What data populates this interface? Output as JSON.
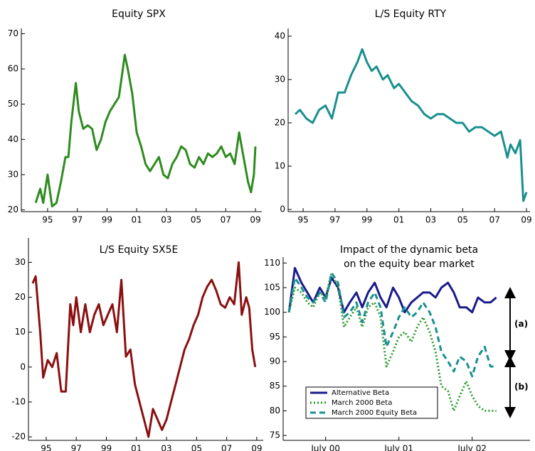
{
  "chart_data": [
    {
      "type": "line",
      "title": "Equity SPX",
      "color": "#2e8b1f",
      "x": [
        1994.2,
        1994.5,
        1994.7,
        1995.0,
        1995.3,
        1995.6,
        1995.9,
        1996.2,
        1996.4,
        1996.6,
        1996.9,
        1997.1,
        1997.4,
        1997.7,
        1998.0,
        1998.3,
        1998.6,
        1998.9,
        1999.2,
        1999.5,
        1999.8,
        2000.0,
        2000.2,
        2000.4,
        2000.7,
        2001.0,
        2001.3,
        2001.6,
        2001.9,
        2002.2,
        2002.5,
        2002.8,
        2003.1,
        2003.4,
        2003.7,
        2004.0,
        2004.3,
        2004.6,
        2004.9,
        2005.2,
        2005.5,
        2005.8,
        2006.1,
        2006.4,
        2006.7,
        2007.0,
        2007.3,
        2007.6,
        2007.9,
        2008.2,
        2008.5,
        2008.7,
        2008.9,
        2009.0
      ],
      "values": [
        22,
        26,
        22,
        30,
        21,
        22,
        28,
        35,
        35,
        45,
        56,
        48,
        43,
        44,
        43,
        37,
        40,
        45,
        48,
        50,
        52,
        58,
        64,
        60,
        53,
        42,
        38,
        33,
        31,
        33,
        35,
        30,
        29,
        33,
        35,
        38,
        37,
        33,
        32,
        35,
        33,
        36,
        35,
        36,
        38,
        35,
        36,
        33,
        42,
        35,
        28,
        25,
        30,
        38
      ],
      "xlim": [
        1993.23,
        2009.43
      ],
      "xticks": [
        {
          "value": 1995,
          "label": "95"
        },
        {
          "value": 1997,
          "label": "97"
        },
        {
          "value": 1999,
          "label": "99"
        },
        {
          "value": 2001,
          "label": "01"
        },
        {
          "value": 2003,
          "label": "03"
        },
        {
          "value": 2005,
          "label": "05"
        },
        {
          "value": 2007,
          "label": "07"
        },
        {
          "value": 2009,
          "label": "09"
        }
      ],
      "ylim": [
        19.5,
        71.5
      ],
      "yticks": [
        20,
        30,
        40,
        50,
        60,
        70
      ]
    },
    {
      "type": "line",
      "title": "L/S Equity RTY",
      "color": "#1a8f8f",
      "x": [
        1994.5,
        1994.8,
        1995.2,
        1995.6,
        1996.0,
        1996.4,
        1996.8,
        1997.2,
        1997.6,
        1998.0,
        1998.4,
        1998.7,
        1999.0,
        1999.3,
        1999.6,
        2000.0,
        2000.3,
        2000.7,
        2001.0,
        2001.4,
        2001.8,
        2002.2,
        2002.6,
        2003.0,
        2003.4,
        2003.8,
        2004.2,
        2004.6,
        2005.0,
        2005.4,
        2005.8,
        2006.2,
        2006.6,
        2007.0,
        2007.4,
        2007.8,
        2008.0,
        2008.3,
        2008.6,
        2008.8,
        2009.0
      ],
      "values": [
        22,
        23,
        21,
        20,
        23,
        24,
        21,
        27,
        27,
        31,
        34,
        37,
        34,
        32,
        33,
        30,
        31,
        28,
        29,
        27,
        25,
        24,
        22,
        21,
        22,
        22,
        21,
        20,
        20,
        18,
        19,
        19,
        18,
        17,
        18,
        12,
        15,
        13,
        16,
        2,
        4
      ],
      "xlim": [
        1994.06,
        2009.22
      ],
      "xticks": [
        {
          "value": 1995,
          "label": "95"
        },
        {
          "value": 1997,
          "label": "97"
        },
        {
          "value": 1999,
          "label": "99"
        },
        {
          "value": 2001,
          "label": "01"
        },
        {
          "value": 2003,
          "label": "03"
        },
        {
          "value": 2005,
          "label": "05"
        },
        {
          "value": 2007,
          "label": "07"
        },
        {
          "value": 2009,
          "label": "09"
        }
      ],
      "ylim": [
        -0.5,
        41.8
      ],
      "yticks": [
        0,
        10,
        20,
        30,
        40
      ]
    },
    {
      "type": "line",
      "title": "L/S Equity SX5E",
      "color": "#8b1010",
      "x": [
        1994.1,
        1994.3,
        1994.6,
        1994.8,
        1995.1,
        1995.4,
        1995.7,
        1996.0,
        1996.3,
        1996.6,
        1996.8,
        1997.0,
        1997.3,
        1997.6,
        1997.9,
        1998.2,
        1998.5,
        1998.8,
        1999.1,
        1999.4,
        1999.7,
        2000.0,
        2000.3,
        2000.6,
        2000.9,
        2001.2,
        2001.5,
        2001.8,
        2002.1,
        2002.4,
        2002.7,
        2003.0,
        2003.3,
        2003.6,
        2003.9,
        2004.2,
        2004.5,
        2004.8,
        2005.1,
        2005.4,
        2005.7,
        2006.0,
        2006.3,
        2006.6,
        2006.9,
        2007.2,
        2007.5,
        2007.8,
        2008.0,
        2008.3,
        2008.5,
        2008.7,
        2008.9
      ],
      "values": [
        24,
        26,
        10,
        -3,
        2,
        0,
        4,
        -7,
        -7,
        18,
        12,
        20,
        10,
        18,
        10,
        15,
        18,
        12,
        15,
        18,
        10,
        25,
        3,
        5,
        -5,
        -10,
        -15,
        -20,
        -12,
        -15,
        -18,
        -15,
        -10,
        -5,
        0,
        5,
        8,
        12,
        15,
        20,
        23,
        25,
        22,
        18,
        17,
        20,
        18,
        30,
        15,
        20,
        17,
        5,
        0
      ],
      "xlim": [
        1993.82,
        2009.43
      ],
      "xticks": [
        {
          "value": 1995,
          "label": "95"
        },
        {
          "value": 1997,
          "label": "97"
        },
        {
          "value": 1999,
          "label": "99"
        },
        {
          "value": 2001,
          "label": "01"
        },
        {
          "value": 2003,
          "label": "03"
        },
        {
          "value": 2005,
          "label": "05"
        },
        {
          "value": 2007,
          "label": "07"
        },
        {
          "value": 2009,
          "label": "09"
        }
      ],
      "ylim": [
        -21,
        37
      ],
      "yticks": [
        -20,
        -10,
        0,
        10,
        20,
        30
      ]
    },
    {
      "type": "line",
      "title": [
        "Impact of the dynamic beta",
        "on the equity bear market"
      ],
      "x": [
        2000,
        2000.08,
        2000.17,
        2000.25,
        2000.33,
        2000.42,
        2000.5,
        2000.58,
        2000.67,
        2000.75,
        2000.83,
        2000.92,
        2001,
        2001.08,
        2001.17,
        2001.25,
        2001.33,
        2001.42,
        2001.5,
        2001.58,
        2001.67,
        2001.75,
        2001.83,
        2001.92,
        2002,
        2002.08,
        2002.17,
        2002.25,
        2002.33,
        2002.42,
        2002.5,
        2002.58,
        2002.67,
        2002.75,
        2002.83
      ],
      "series": [
        {
          "name": "Alternative Beta",
          "color": "#1a1a8c",
          "dash": "solid",
          "values": [
            100,
            109,
            106,
            104,
            102,
            105,
            103,
            107,
            105,
            100,
            102,
            104,
            101,
            104,
            106,
            103,
            101,
            105,
            103,
            100,
            102,
            103,
            104,
            104,
            103,
            105,
            106,
            104,
            101,
            101,
            100,
            103,
            102,
            102,
            103
          ]
        },
        {
          "name": "March 2000 Beta",
          "color": "#2d9c2d",
          "dash": "dotted",
          "values": [
            100,
            105,
            104,
            102,
            101,
            104,
            103,
            108,
            105,
            97,
            99,
            101,
            97,
            101,
            102,
            99,
            89,
            92,
            95,
            96,
            94,
            97,
            99,
            96,
            92,
            85,
            84,
            80,
            83,
            86,
            83,
            81,
            80,
            80,
            80
          ]
        },
        {
          "name": "March 2000 Equity Beta",
          "color": "#1a8f8f",
          "dash": "dashed",
          "values": [
            100,
            107,
            105,
            103,
            102,
            104,
            102,
            108,
            106,
            99,
            100,
            102,
            98,
            102,
            104,
            101,
            93,
            96,
            99,
            101,
            99,
            100,
            102,
            100,
            97,
            92,
            90,
            88,
            91,
            90,
            87,
            91,
            93,
            89,
            89
          ]
        }
      ],
      "xlim": [
        1999.92,
        2003.29
      ],
      "xticks": [
        {
          "value": 2000.5,
          "label": "July 00"
        },
        {
          "value": 2001.5,
          "label": "July 01"
        },
        {
          "value": 2002.5,
          "label": "July 02"
        }
      ],
      "ylim": [
        74,
        111.2
      ],
      "yticks": [
        75,
        80,
        85,
        90,
        95,
        100,
        105,
        110
      ],
      "legend": "lower-left",
      "annotations": [
        "(a)",
        "(b)"
      ]
    }
  ]
}
